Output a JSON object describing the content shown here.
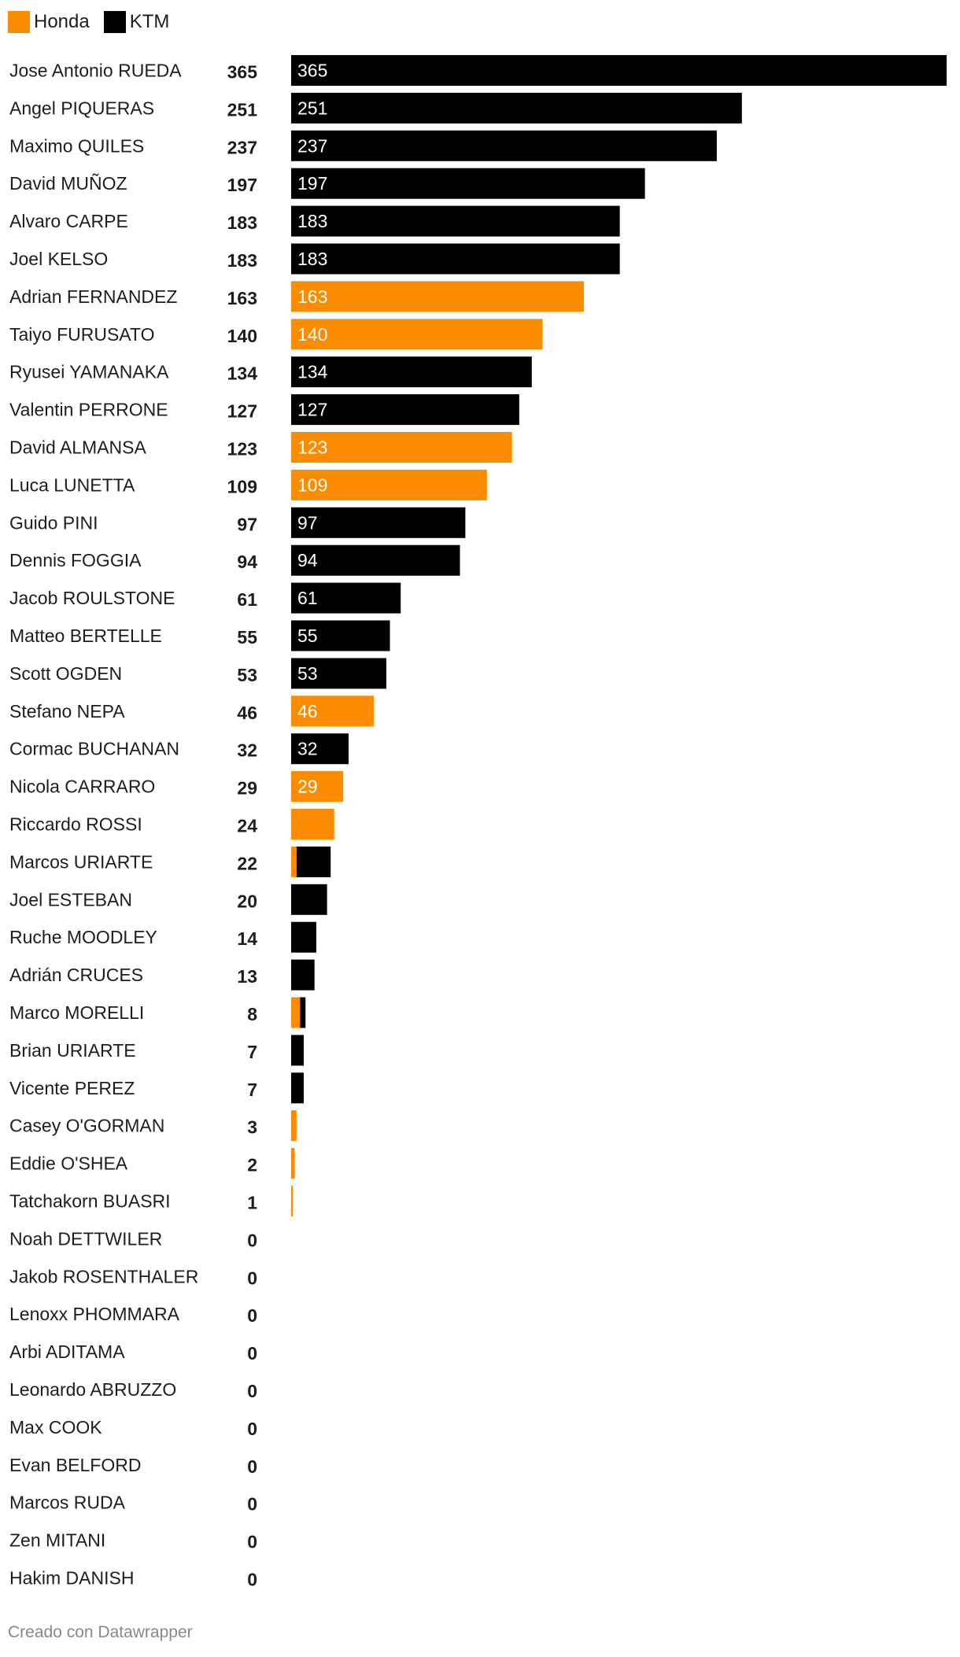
{
  "legend": [
    {
      "label": "Honda",
      "color": "#fb8c00"
    },
    {
      "label": "KTM",
      "color": "#000000"
    }
  ],
  "footer": {
    "credit": "Creado con Datawrapper"
  },
  "chart_data": {
    "type": "bar",
    "orientation": "horizontal",
    "stacked": true,
    "title": "",
    "xlabel": "",
    "ylabel": "",
    "xlim": [
      0,
      365
    ],
    "grid": false,
    "legend_position": "top-left",
    "categories": [
      "Jose Antonio RUEDA",
      "Angel PIQUERAS",
      "Maximo QUILES",
      "David MUÑOZ",
      "Alvaro CARPE",
      "Joel KELSO",
      "Adrian FERNANDEZ",
      "Taiyo FURUSATO",
      "Ryusei YAMANAKA",
      "Valentin PERRONE",
      "David ALMANSA",
      "Luca LUNETTA",
      "Guido PINI",
      "Dennis FOGGIA",
      "Jacob ROULSTONE",
      "Matteo BERTELLE",
      "Scott OGDEN",
      "Stefano NEPA",
      "Cormac BUCHANAN",
      "Nicola CARRARO",
      "Riccardo ROSSI",
      "Marcos URIARTE",
      "Joel ESTEBAN",
      "Ruche MOODLEY",
      "Adrián CRUCES",
      "Marco MORELLI",
      "Brian URIARTE",
      "Vicente PEREZ",
      "Casey O'GORMAN",
      "Eddie O'SHEA",
      "Tatchakorn BUASRI",
      "Noah DETTWILER",
      "Jakob ROSENTHALER",
      "Lenoxx PHOMMARA",
      "Arbi ADITAMA",
      "Leonardo ABRUZZO",
      "Max COOK",
      "Evan BELFORD",
      "Marcos RUDA",
      "Zen MITANI",
      "Hakim DANISH"
    ],
    "totals": [
      365,
      251,
      237,
      197,
      183,
      183,
      163,
      140,
      134,
      127,
      123,
      109,
      97,
      94,
      61,
      55,
      53,
      46,
      32,
      29,
      24,
      22,
      20,
      14,
      13,
      8,
      7,
      7,
      3,
      2,
      1,
      0,
      0,
      0,
      0,
      0,
      0,
      0,
      0,
      0,
      0
    ],
    "series": [
      {
        "name": "Honda",
        "color": "#fb8c00",
        "values": [
          0,
          0,
          0,
          0,
          0,
          0,
          163,
          140,
          0,
          0,
          123,
          109,
          0,
          0,
          0,
          0,
          0,
          46,
          0,
          29,
          24,
          3,
          0,
          0,
          0,
          5,
          0,
          0,
          3,
          2,
          1,
          0,
          0,
          0,
          0,
          0,
          0,
          0,
          0,
          0,
          0
        ]
      },
      {
        "name": "KTM",
        "color": "#000000",
        "values": [
          365,
          251,
          237,
          197,
          183,
          183,
          0,
          0,
          134,
          127,
          0,
          0,
          97,
          94,
          61,
          55,
          53,
          0,
          32,
          0,
          0,
          19,
          20,
          14,
          13,
          3,
          7,
          7,
          0,
          0,
          0,
          0,
          0,
          0,
          0,
          0,
          0,
          0,
          0,
          0,
          0
        ]
      }
    ]
  }
}
